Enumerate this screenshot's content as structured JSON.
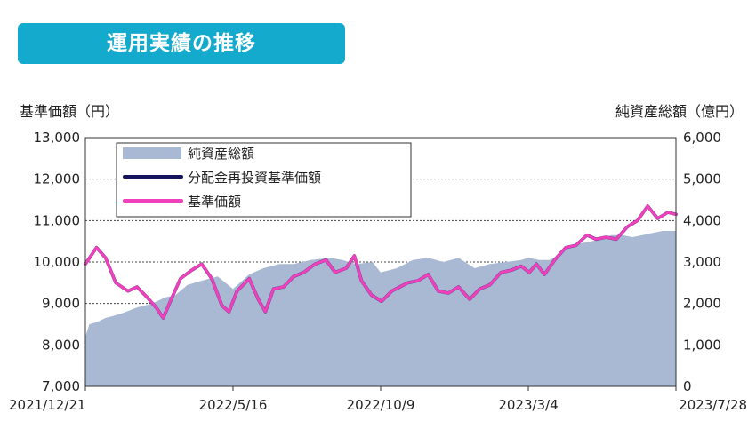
{
  "header": {
    "title": "運用実績の推移"
  },
  "chart_data": {
    "type": "line",
    "title": "",
    "ylabel": "基準価額（円）",
    "ylabel_right": "純資産総額（億円）",
    "ylim": [
      7000,
      13000
    ],
    "ylim_right": [
      0,
      6000
    ],
    "yticks": [
      "7,000",
      "8,000",
      "9,000",
      "10,000",
      "11,000",
      "12,000",
      "13,000"
    ],
    "yticks_right": [
      "0",
      "1,000",
      "2,000",
      "3,000",
      "4,000",
      "5,000",
      "6,000"
    ],
    "xlim": [
      "2021-12-21",
      "2023-07-28"
    ],
    "xticks": [
      "2021/12/21",
      "2022/5/16",
      "2022/10/9",
      "2023/3/4",
      "2023/7/28"
    ],
    "grid": "horizontal-dashed",
    "legend": {
      "placement": "top-left",
      "entries": [
        "純資産総額",
        "分配金再投資基準価額",
        "基準価額"
      ]
    },
    "colors": {
      "area": "#a9b9d3",
      "reinvested": "#13135e",
      "nav": "#f040bc",
      "banner": "#13aacd"
    },
    "series": [
      {
        "name": "純資産総額",
        "axis": "right",
        "kind": "area",
        "x": [
          "2021-12-21",
          "2021-12-25",
          "2022-01-01",
          "2022-01-10",
          "2022-01-25",
          "2022-02-10",
          "2022-02-25",
          "2022-03-10",
          "2022-03-20",
          "2022-04-01",
          "2022-04-15",
          "2022-05-01",
          "2022-05-16",
          "2022-06-01",
          "2022-06-15",
          "2022-07-01",
          "2022-07-15",
          "2022-08-01",
          "2022-08-20",
          "2022-09-01",
          "2022-09-15",
          "2022-10-01",
          "2022-10-09",
          "2022-10-25",
          "2022-11-10",
          "2022-11-25",
          "2022-12-10",
          "2022-12-25",
          "2023-01-10",
          "2023-01-25",
          "2023-02-10",
          "2023-02-25",
          "2023-03-04",
          "2023-03-15",
          "2023-03-25",
          "2023-04-05",
          "2023-04-15",
          "2023-04-25",
          "2023-05-05",
          "2023-05-15",
          "2023-05-25",
          "2023-06-05",
          "2023-06-15",
          "2023-06-25",
          "2023-07-05",
          "2023-07-15",
          "2023-07-28"
        ],
        "values": [
          1200,
          1500,
          1550,
          1650,
          1750,
          1900,
          2000,
          2150,
          2200,
          2450,
          2550,
          2650,
          2350,
          2700,
          2850,
          2950,
          2950,
          3050,
          3100,
          3050,
          2950,
          3000,
          2750,
          2850,
          3050,
          3100,
          3000,
          3100,
          2850,
          2950,
          3000,
          3050,
          3100,
          3050,
          3050,
          3200,
          3400,
          3450,
          3500,
          3550,
          3650,
          3650,
          3600,
          3650,
          3700,
          3750,
          3750
        ]
      },
      {
        "name": "分配金再投資基準価額",
        "axis": "left",
        "kind": "line",
        "x": [
          "2021-12-21",
          "2022-01-01",
          "2022-01-10",
          "2022-01-20",
          "2022-02-01",
          "2022-02-10",
          "2022-02-20",
          "2022-03-01",
          "2022-03-08",
          "2022-03-15",
          "2022-03-25",
          "2022-04-05",
          "2022-04-15",
          "2022-04-25",
          "2022-05-05",
          "2022-05-12",
          "2022-05-20",
          "2022-06-01",
          "2022-06-10",
          "2022-06-17",
          "2022-06-25",
          "2022-07-05",
          "2022-07-15",
          "2022-07-25",
          "2022-08-05",
          "2022-08-16",
          "2022-08-25",
          "2022-09-05",
          "2022-09-13",
          "2022-09-20",
          "2022-09-30",
          "2022-10-10",
          "2022-10-20",
          "2022-10-28",
          "2022-11-05",
          "2022-11-15",
          "2022-11-25",
          "2022-12-05",
          "2022-12-15",
          "2022-12-25",
          "2023-01-05",
          "2023-01-15",
          "2023-01-25",
          "2023-02-05",
          "2023-02-15",
          "2023-02-25",
          "2023-03-05",
          "2023-03-12",
          "2023-03-20",
          "2023-03-30",
          "2023-04-10",
          "2023-04-20",
          "2023-05-01",
          "2023-05-10",
          "2023-05-20",
          "2023-05-30",
          "2023-06-10",
          "2023-06-20",
          "2023-06-30",
          "2023-07-10",
          "2023-07-20",
          "2023-07-28"
        ],
        "values": [
          9950,
          10350,
          10100,
          9500,
          9300,
          9400,
          9150,
          8900,
          8650,
          9050,
          9600,
          9800,
          9950,
          9600,
          8950,
          8800,
          9300,
          9600,
          9100,
          8800,
          9350,
          9400,
          9650,
          9750,
          9950,
          10050,
          9750,
          9850,
          10150,
          9550,
          9200,
          9050,
          9300,
          9400,
          9500,
          9550,
          9700,
          9300,
          9250,
          9400,
          9100,
          9350,
          9450,
          9750,
          9800,
          9900,
          9750,
          9950,
          9700,
          10050,
          10350,
          10400,
          10650,
          10550,
          10600,
          10550,
          10850,
          11000,
          11350,
          11050,
          11200,
          11150
        ]
      },
      {
        "name": "基準価額",
        "axis": "left",
        "kind": "line",
        "x": [
          "2021-12-21",
          "2022-01-01",
          "2022-01-10",
          "2022-01-20",
          "2022-02-01",
          "2022-02-10",
          "2022-02-20",
          "2022-03-01",
          "2022-03-08",
          "2022-03-15",
          "2022-03-25",
          "2022-04-05",
          "2022-04-15",
          "2022-04-25",
          "2022-05-05",
          "2022-05-12",
          "2022-05-20",
          "2022-06-01",
          "2022-06-10",
          "2022-06-17",
          "2022-06-25",
          "2022-07-05",
          "2022-07-15",
          "2022-07-25",
          "2022-08-05",
          "2022-08-16",
          "2022-08-25",
          "2022-09-05",
          "2022-09-13",
          "2022-09-20",
          "2022-09-30",
          "2022-10-10",
          "2022-10-20",
          "2022-10-28",
          "2022-11-05",
          "2022-11-15",
          "2022-11-25",
          "2022-12-05",
          "2022-12-15",
          "2022-12-25",
          "2023-01-05",
          "2023-01-15",
          "2023-01-25",
          "2023-02-05",
          "2023-02-15",
          "2023-02-25",
          "2023-03-05",
          "2023-03-12",
          "2023-03-20",
          "2023-03-30",
          "2023-04-10",
          "2023-04-20",
          "2023-05-01",
          "2023-05-10",
          "2023-05-20",
          "2023-05-30",
          "2023-06-10",
          "2023-06-20",
          "2023-06-30",
          "2023-07-10",
          "2023-07-20",
          "2023-07-28"
        ],
        "values": [
          9950,
          10350,
          10100,
          9500,
          9300,
          9400,
          9150,
          8900,
          8650,
          9050,
          9600,
          9800,
          9950,
          9600,
          8950,
          8800,
          9300,
          9600,
          9100,
          8800,
          9350,
          9400,
          9650,
          9750,
          9950,
          10050,
          9750,
          9850,
          10150,
          9550,
          9200,
          9050,
          9300,
          9400,
          9500,
          9550,
          9700,
          9300,
          9250,
          9400,
          9100,
          9350,
          9450,
          9750,
          9800,
          9900,
          9750,
          9950,
          9700,
          10050,
          10350,
          10400,
          10650,
          10550,
          10600,
          10550,
          10850,
          11000,
          11350,
          11050,
          11200,
          11150
        ]
      }
    ]
  }
}
